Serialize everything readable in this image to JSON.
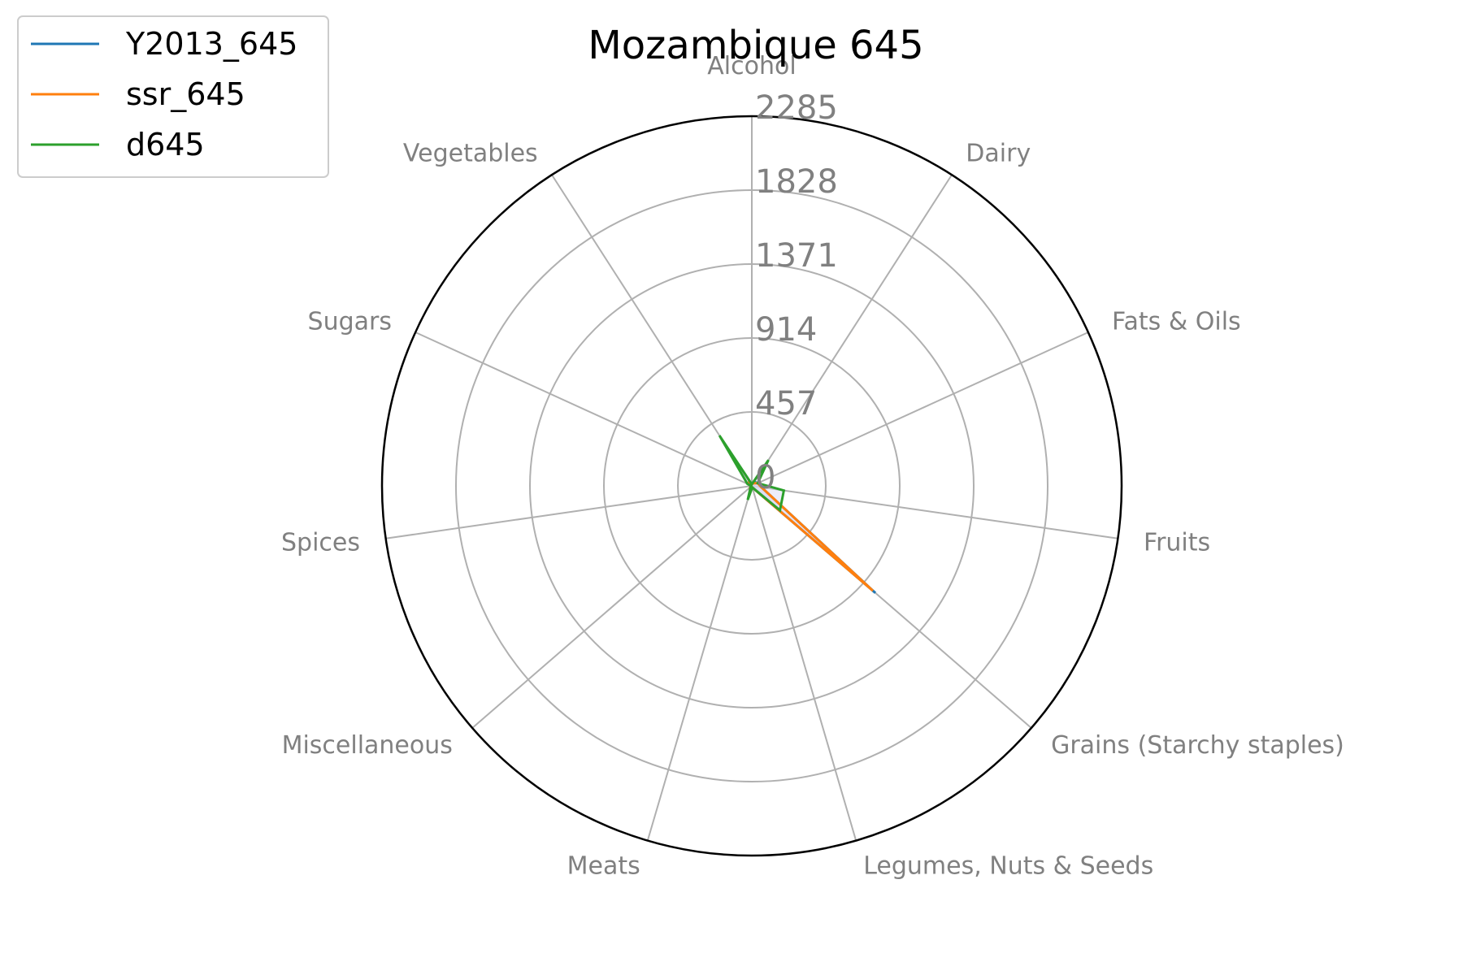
{
  "chart_data": {
    "type": "radar",
    "title": "Mozambique 645",
    "categories": [
      "Alcohol",
      "Dairy",
      "Fats & Oils",
      "Fruits",
      "Grains (Starchy staples)",
      "Legumes, Nuts & Seeds",
      "Meats",
      "Miscellaneous",
      "Spices",
      "Sugars",
      "Vegetables"
    ],
    "tick_values": [
      0,
      457,
      914,
      1371,
      1828,
      2285
    ],
    "tick_labels": [
      "0",
      "457",
      "914",
      "1371",
      "1828",
      "2285"
    ],
    "rmax": 2285,
    "series": [
      {
        "name": "Y2013_645",
        "color": "#1f77b4",
        "values": [
          10,
          30,
          40,
          60,
          1010,
          10,
          5,
          10,
          5,
          20,
          30
        ]
      },
      {
        "name": "ssr_645",
        "color": "#ff7f0e",
        "values": [
          10,
          20,
          40,
          60,
          990,
          10,
          5,
          10,
          5,
          20,
          30
        ]
      },
      {
        "name": "d645",
        "color": "#2ca02c",
        "values": [
          10,
          190,
          40,
          200,
          230,
          10,
          90,
          10,
          5,
          30,
          370
        ]
      }
    ],
    "fill_color": "#d8d8f2",
    "legend_position": "top-left"
  }
}
